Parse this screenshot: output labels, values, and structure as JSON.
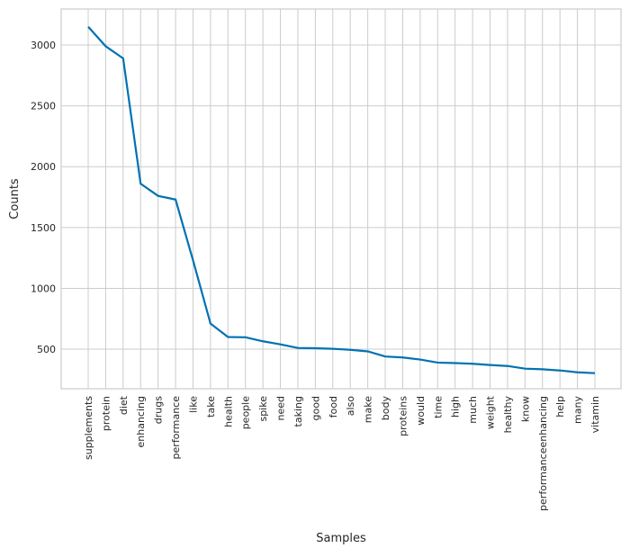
{
  "chart_data": {
    "type": "line",
    "x_label": "Samples",
    "y_label": "Counts",
    "categories": [
      "supplements",
      "protein",
      "diet",
      "enhancing",
      "drugs",
      "performance",
      "like",
      "take",
      "health",
      "people",
      "spike",
      "need",
      "taking",
      "good",
      "food",
      "also",
      "make",
      "body",
      "proteins",
      "would",
      "time",
      "high",
      "much",
      "weight",
      "healthy",
      "know",
      "performanceenhancing",
      "help",
      "many",
      "vitamin"
    ],
    "values": [
      3150,
      2990,
      2890,
      1860,
      1760,
      1730,
      1230,
      710,
      600,
      598,
      565,
      540,
      510,
      508,
      503,
      495,
      482,
      440,
      432,
      415,
      390,
      386,
      380,
      370,
      362,
      340,
      335,
      325,
      310,
      303
    ],
    "color": "#0072b2",
    "ylim": [
      175,
      3296
    ],
    "yticks": [
      500,
      1000,
      1500,
      2000,
      2500,
      3000
    ],
    "grid": true
  }
}
